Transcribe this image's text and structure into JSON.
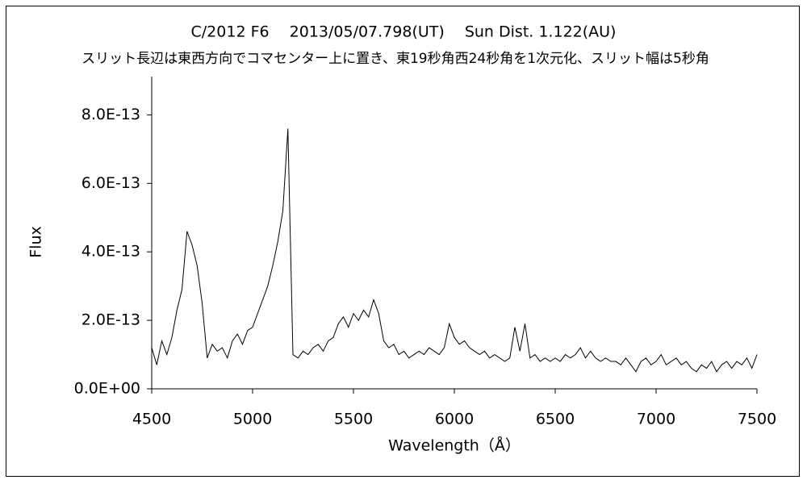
{
  "chart_data": {
    "type": "line",
    "title": "C/2012 F6　 2013/05/07.798(UT)　 Sun Dist. 1.122(AU)",
    "subtitle": "スリット長辺は東西方向でコマセンター上に置き、東19秒角西24秒角を1次元化、スリット幅は5秒角",
    "x_label": "Wavelength（Å）",
    "y_label": "Flux",
    "color": "#000000",
    "xlim": [
      4500,
      7500
    ],
    "xticks": [
      4500,
      5000,
      5500,
      6000,
      6500,
      7000,
      7500
    ],
    "ylim": [
      0,
      9e-13
    ],
    "yticks": [
      {
        "value": 0,
        "label": "0.0E+00"
      },
      {
        "value": 2e-13,
        "label": "2.0E-13"
      },
      {
        "value": 4e-13,
        "label": "4.0E-13"
      },
      {
        "value": 6e-13,
        "label": "6.0E-13"
      },
      {
        "value": 8e-13,
        "label": "8.0E-13"
      }
    ],
    "x": [
      4500,
      4525,
      4550,
      4575,
      4600,
      4625,
      4650,
      4675,
      4700,
      4725,
      4750,
      4775,
      4800,
      4825,
      4850,
      4875,
      4900,
      4925,
      4950,
      4975,
      5000,
      5025,
      5050,
      5075,
      5100,
      5125,
      5150,
      5175,
      5200,
      5225,
      5250,
      5275,
      5300,
      5325,
      5350,
      5375,
      5400,
      5425,
      5450,
      5475,
      5500,
      5525,
      5550,
      5575,
      5600,
      5625,
      5650,
      5675,
      5700,
      5725,
      5750,
      5775,
      5800,
      5825,
      5850,
      5875,
      5900,
      5925,
      5950,
      5975,
      6000,
      6025,
      6050,
      6075,
      6100,
      6125,
      6150,
      6175,
      6200,
      6225,
      6250,
      6275,
      6300,
      6325,
      6350,
      6375,
      6400,
      6425,
      6450,
      6475,
      6500,
      6525,
      6550,
      6575,
      6600,
      6625,
      6650,
      6675,
      6700,
      6725,
      6750,
      6775,
      6800,
      6825,
      6850,
      6875,
      6900,
      6925,
      6950,
      6975,
      7000,
      7025,
      7050,
      7075,
      7100,
      7125,
      7150,
      7175,
      7200,
      7225,
      7250,
      7275,
      7300,
      7325,
      7350,
      7375,
      7400,
      7425,
      7450,
      7475,
      7500
    ],
    "values": [
      1.2e-13,
      7e-14,
      1.4e-13,
      1e-13,
      1.5e-13,
      2.3e-13,
      2.9e-13,
      4.6e-13,
      4.2e-13,
      3.6e-13,
      2.5e-13,
      9e-14,
      1.3e-13,
      1.1e-13,
      1.2e-13,
      9e-14,
      1.4e-13,
      1.6e-13,
      1.3e-13,
      1.7e-13,
      1.8e-13,
      2.2e-13,
      2.6e-13,
      3e-13,
      3.6e-13,
      4.3e-13,
      5.2e-13,
      7.6e-13,
      1e-13,
      9e-14,
      1.1e-13,
      1e-13,
      1.2e-13,
      1.3e-13,
      1.1e-13,
      1.4e-13,
      1.5e-13,
      1.9e-13,
      2.1e-13,
      1.8e-13,
      2.2e-13,
      2e-13,
      2.3e-13,
      2.1e-13,
      2.6e-13,
      2.2e-13,
      1.4e-13,
      1.2e-13,
      1.3e-13,
      1e-13,
      1.1e-13,
      9e-14,
      1e-13,
      1.1e-13,
      1e-13,
      1.2e-13,
      1.1e-13,
      1e-13,
      1.2e-13,
      1.9e-13,
      1.5e-13,
      1.3e-13,
      1.4e-13,
      1.2e-13,
      1.1e-13,
      1e-13,
      1.1e-13,
      9e-14,
      1e-13,
      9e-14,
      8e-14,
      9e-14,
      1.8e-13,
      1.1e-13,
      1.9e-13,
      9e-14,
      1e-13,
      8e-14,
      9e-14,
      8e-14,
      9e-14,
      8e-14,
      1e-13,
      9e-14,
      1e-13,
      1.2e-13,
      9e-14,
      1.1e-13,
      9e-14,
      8e-14,
      9e-14,
      8e-14,
      8e-14,
      7e-14,
      9e-14,
      7e-14,
      5e-14,
      8e-14,
      9e-14,
      7e-14,
      8e-14,
      1e-13,
      7e-14,
      8e-14,
      9e-14,
      7e-14,
      8e-14,
      6e-14,
      5e-14,
      7e-14,
      6e-14,
      8e-14,
      5e-14,
      7e-14,
      8e-14,
      6e-14,
      8e-14,
      7e-14,
      9e-14,
      6e-14,
      1e-13
    ]
  }
}
